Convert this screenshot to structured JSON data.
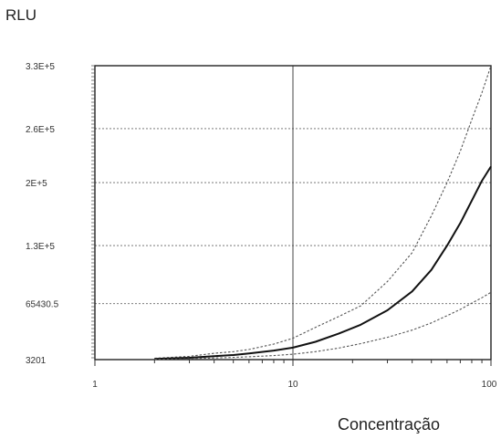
{
  "chart_data": {
    "type": "line",
    "ylabel": "RLU",
    "xlabel": "Concentração",
    "x_scale": "log",
    "xlim": [
      1,
      100
    ],
    "ylim": [
      3201,
      330000
    ],
    "grid": true,
    "x_ticks": [
      {
        "value": 1,
        "label": "1"
      },
      {
        "value": 10,
        "label": "10"
      },
      {
        "value": 100,
        "label": "100"
      }
    ],
    "y_ticks": [
      {
        "value": 3201,
        "label": "3201"
      },
      {
        "value": 65430.5,
        "label": "65430.5"
      },
      {
        "value": 130000,
        "label": "1.3E+5"
      },
      {
        "value": 200000,
        "label": "2E+5"
      },
      {
        "value": 260000,
        "label": "2.6E+5"
      },
      {
        "value": 330000,
        "label": "3.3E+5"
      }
    ],
    "series": [
      {
        "style": "dotted",
        "color": "#555555",
        "x": [
          2,
          3,
          4,
          5,
          6,
          8,
          10,
          13,
          17,
          22,
          30,
          40,
          50,
          60,
          70,
          80,
          90,
          100
        ],
        "y": [
          4600,
          6900,
          10200,
          12000,
          14500,
          20500,
          27000,
          39000,
          51000,
          63000,
          90000,
          122000,
          163000,
          200000,
          235000,
          270000,
          300000,
          330000
        ]
      },
      {
        "style": "solid",
        "color": "#111111",
        "x": [
          2,
          3,
          4,
          5,
          6,
          8,
          10,
          13,
          17,
          22,
          30,
          40,
          50,
          60,
          70,
          80,
          90,
          100
        ],
        "y": [
          4000,
          5200,
          7000,
          8300,
          10000,
          13200,
          16500,
          23000,
          32000,
          42000,
          58000,
          79000,
          103000,
          130000,
          155000,
          180000,
          202000,
          218000
        ]
      },
      {
        "style": "dotted",
        "color": "#555555",
        "x": [
          2,
          3,
          4,
          5,
          6,
          8,
          10,
          13,
          17,
          22,
          30,
          40,
          50,
          60,
          70,
          80,
          90,
          100
        ],
        "y": [
          3500,
          4200,
          5000,
          5600,
          6300,
          7700,
          9200,
          12000,
          16000,
          21000,
          28000,
          36000,
          44000,
          52000,
          59000,
          66000,
          72000,
          78000
        ]
      }
    ]
  }
}
